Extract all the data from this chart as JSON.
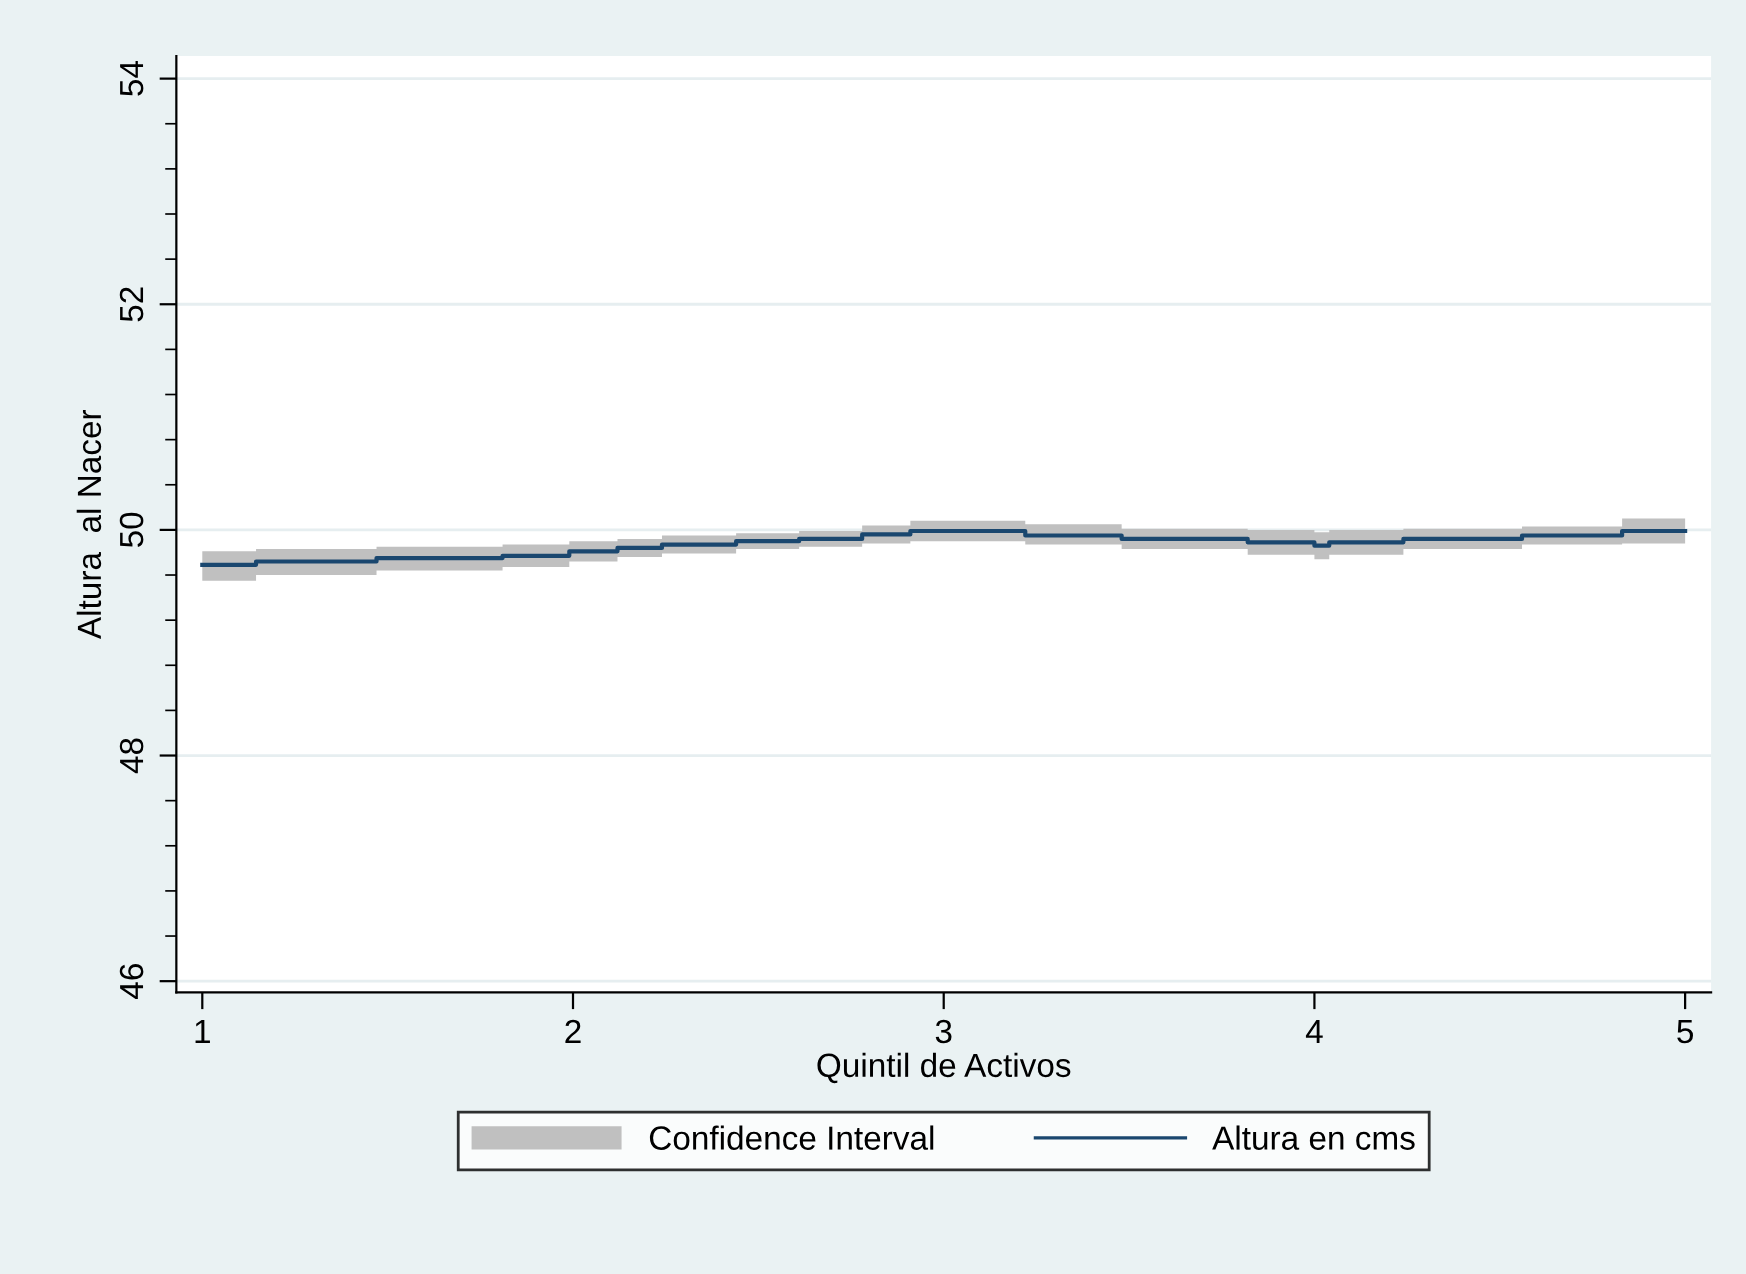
{
  "chart_data": {
    "type": "step",
    "xlabel": "Quintil de Activos",
    "ylabel": "Altura  al Nacer",
    "annotations": [
      "Confidence Interval"
    ],
    "xlim": [
      0.93,
      5.07
    ],
    "xticks": [
      1,
      2,
      3,
      4,
      5
    ],
    "ylim": [
      45.9,
      54.2
    ],
    "yticks": [
      46,
      48,
      50,
      52,
      54
    ],
    "grid": "y",
    "legend": "bottom",
    "marker": "none",
    "line_style": "solid",
    "series": [
      {
        "name": "Altura en cms",
        "color": "#1a476f",
        "x": [
          1.0,
          1.145,
          1.47,
          1.81,
          1.99,
          2.12,
          2.24,
          2.44,
          2.61,
          2.78,
          2.91,
          3.22,
          3.48,
          3.82,
          4.0,
          4.04,
          4.24,
          4.56,
          4.83,
          5.0
        ],
        "values": [
          49.69,
          49.72,
          49.75,
          49.77,
          49.81,
          49.84,
          49.87,
          49.9,
          49.92,
          49.96,
          49.99,
          49.95,
          49.92,
          49.89,
          49.86,
          49.89,
          49.92,
          49.95,
          49.99,
          49.99
        ],
        "lower": [
          49.55,
          49.6,
          49.64,
          49.67,
          49.72,
          49.76,
          49.79,
          49.83,
          49.85,
          49.88,
          49.9,
          49.87,
          49.83,
          49.78,
          49.74,
          49.78,
          49.83,
          49.87,
          49.88,
          49.88
        ],
        "upper": [
          49.81,
          49.83,
          49.85,
          49.87,
          49.9,
          49.92,
          49.95,
          49.97,
          49.99,
          50.04,
          50.08,
          50.05,
          50.01,
          50.0,
          49.98,
          50.0,
          50.01,
          50.03,
          50.1,
          50.1
        ]
      }
    ]
  }
}
